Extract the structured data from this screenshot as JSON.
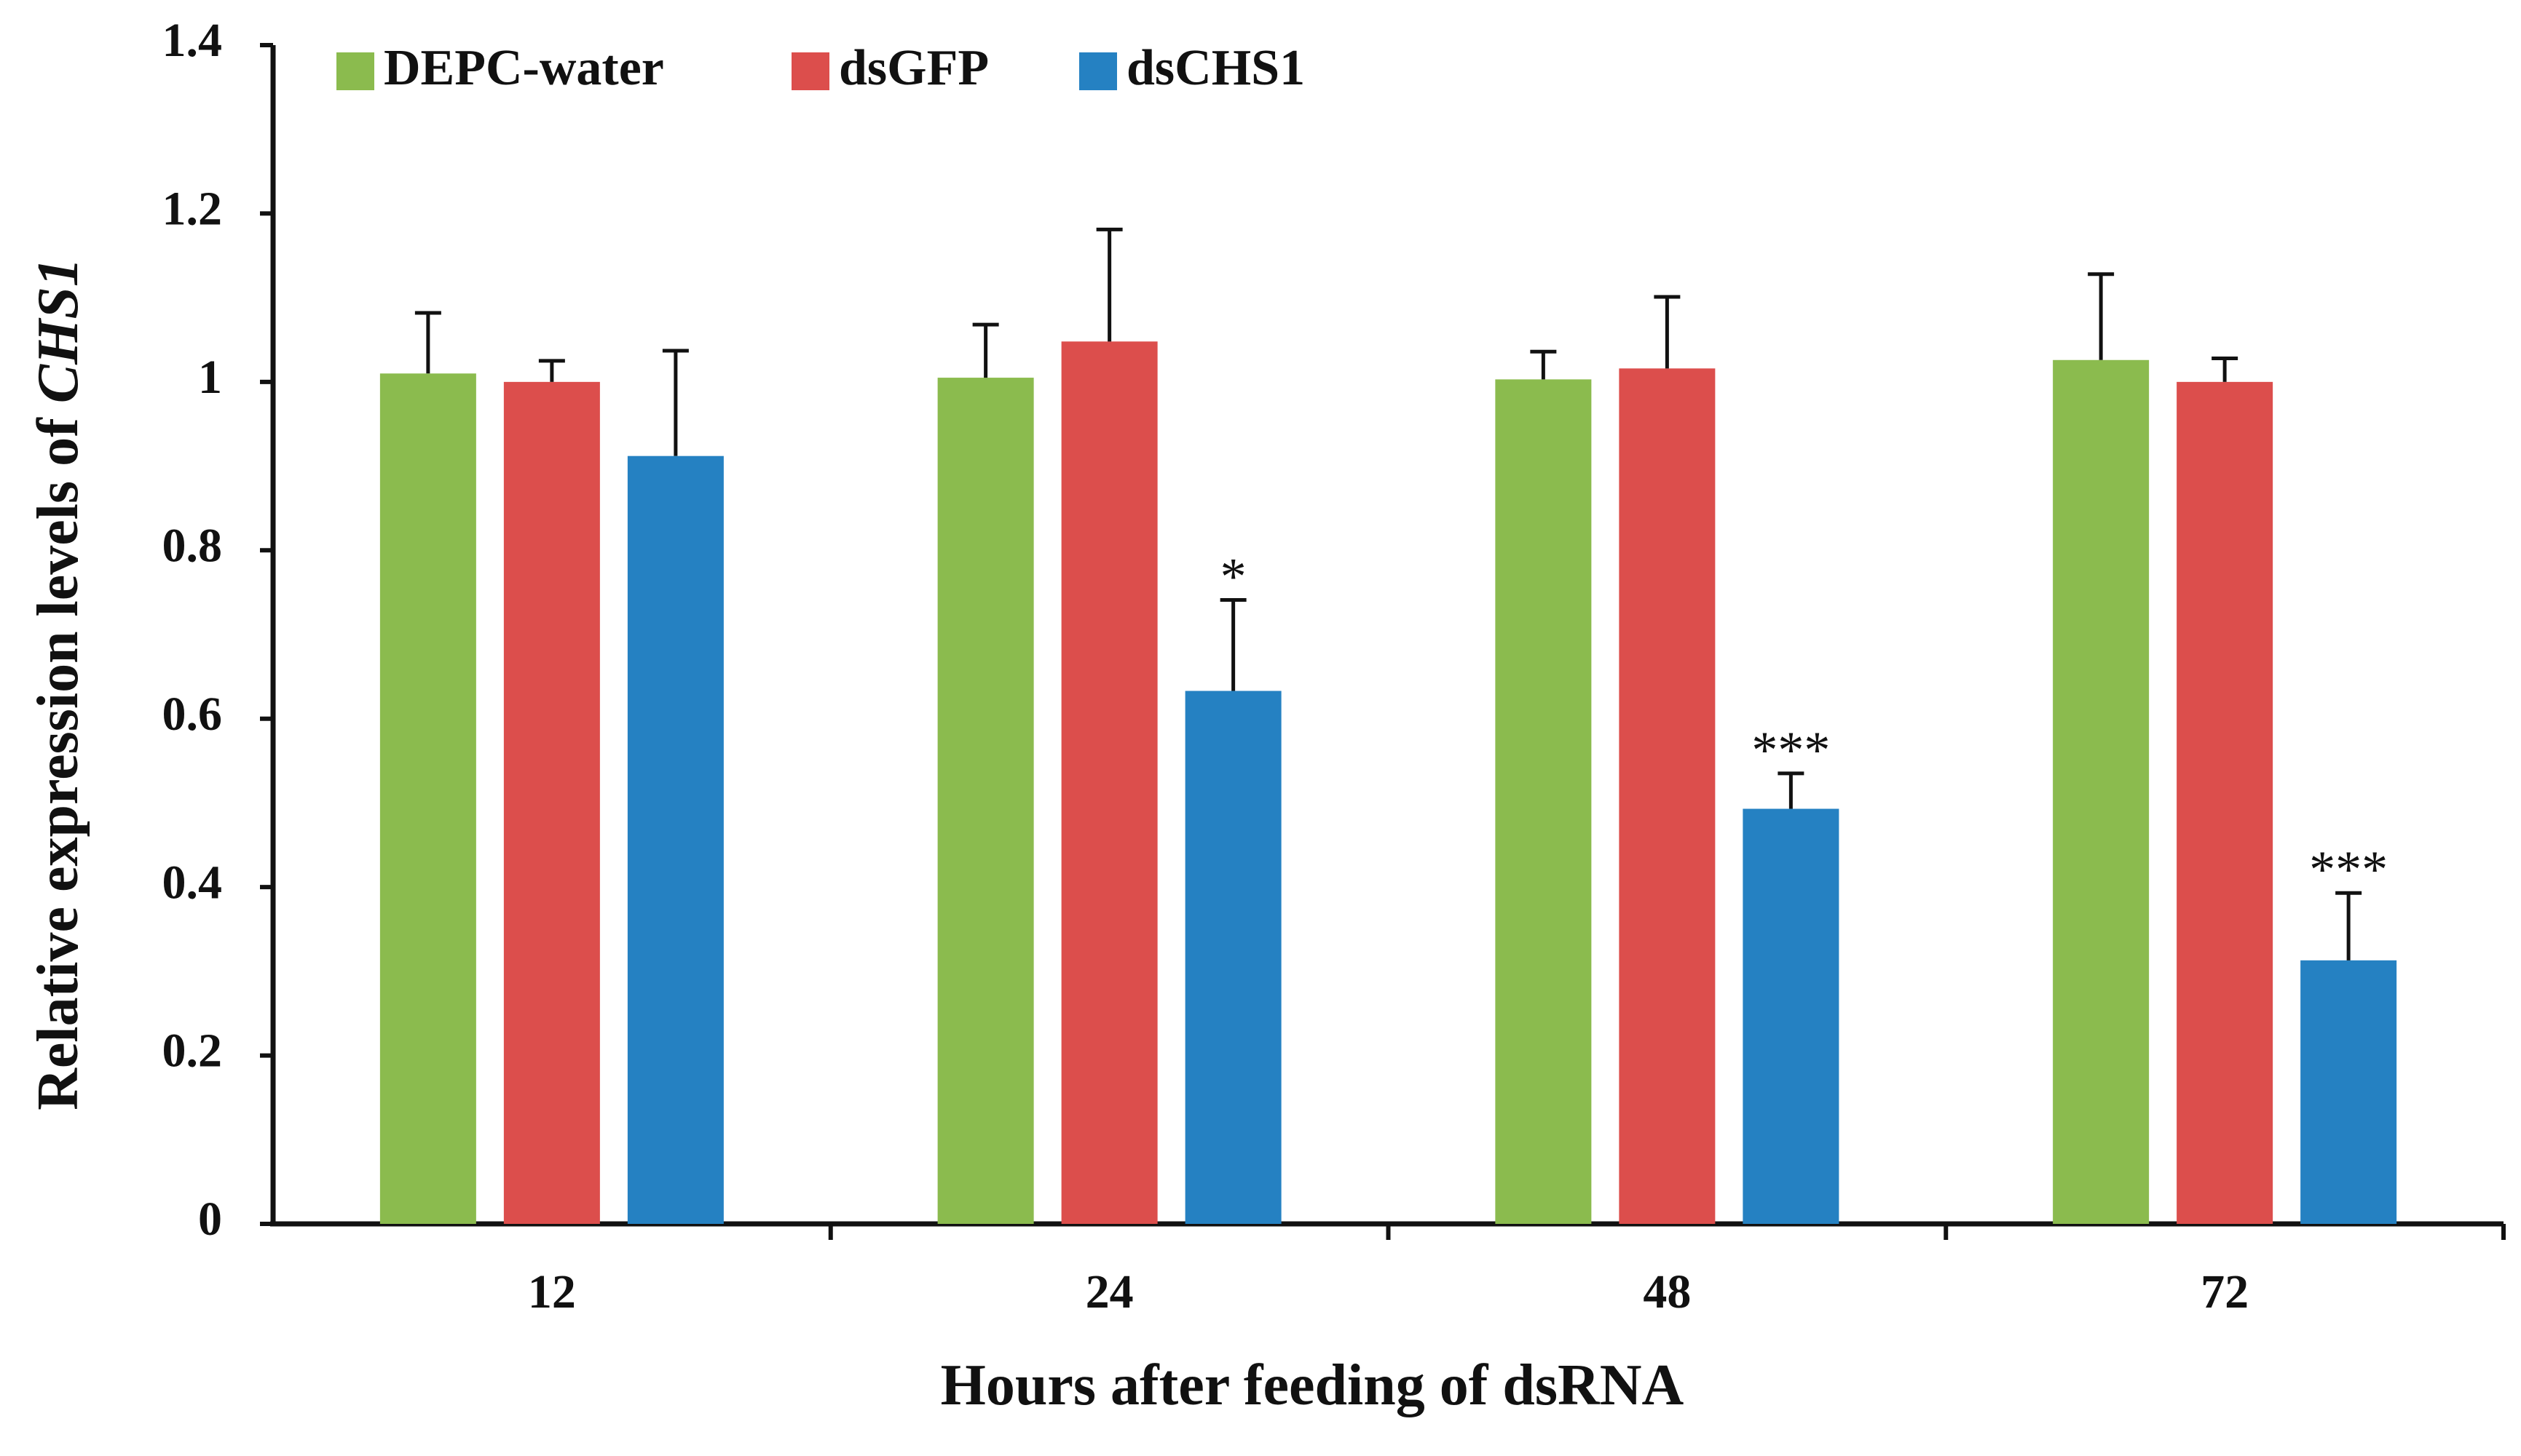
{
  "chart_data": {
    "type": "bar",
    "title": "",
    "xlabel": "Hours after feeding of dsRNA",
    "ylabel_prefix": "Relative expression levels of ",
    "ylabel_gene": "CHS1",
    "ylim": [
      0,
      1.4
    ],
    "ytick_values": [
      0,
      0.2,
      0.4,
      0.6,
      0.8,
      1.0,
      1.2,
      1.4
    ],
    "ytick_labels": [
      "0",
      "0.2",
      "0.4",
      "0.6",
      "0.8",
      "1",
      "1.2",
      "1.4"
    ],
    "categories": [
      "12",
      "24",
      "48",
      "72"
    ],
    "legend_position": "top-left",
    "series": [
      {
        "name": "DEPC-water",
        "color": "#8BBB4E",
        "values": [
          1.01,
          1.005,
          1.003,
          1.026
        ],
        "errors": [
          0.072,
          0.063,
          0.033,
          0.102
        ],
        "significance": [
          "",
          "",
          "",
          ""
        ]
      },
      {
        "name": "dsGFP",
        "color": "#DC4E4C",
        "values": [
          1.0,
          1.048,
          1.016,
          1.0
        ],
        "errors": [
          0.025,
          0.133,
          0.085,
          0.028
        ],
        "significance": [
          "",
          "",
          "",
          ""
        ]
      },
      {
        "name": "dsCHS1",
        "color": "#2581C2",
        "values": [
          0.912,
          0.633,
          0.493,
          0.313
        ],
        "errors": [
          0.125,
          0.108,
          0.042,
          0.08
        ],
        "significance": [
          "",
          "*",
          "***",
          "***"
        ]
      }
    ]
  }
}
